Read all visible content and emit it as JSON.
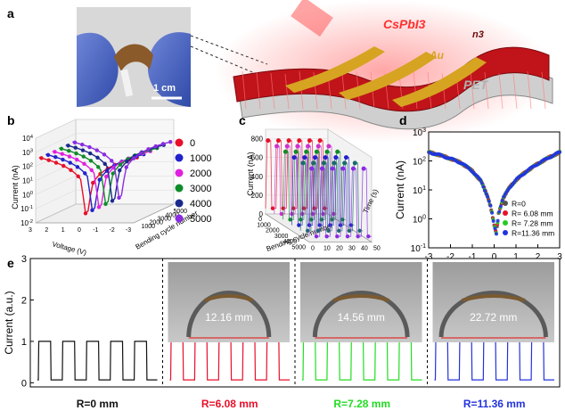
{
  "panels": {
    "a": {
      "label": "a",
      "scale_bar": "1 cm",
      "layers": {
        "top": "CsPbI3",
        "electrode": "Au",
        "substrate": "PET",
        "top_right": "n3"
      },
      "colors": {
        "perovskite": "#c0141a",
        "gold": "#d6a421",
        "substrate": "#c9c9c9",
        "glow": "#ff6b6b"
      }
    },
    "b": {
      "label": "b"
    },
    "c": {
      "label": "c"
    },
    "d": {
      "label": "d"
    },
    "e": {
      "label": "e"
    }
  },
  "chart_data": [
    {
      "panel": "b",
      "type": "scatter",
      "projection": "3d",
      "xlabel": "Voltage (V)",
      "ylabel": "Bending cycle number",
      "zlabel": "Current (nA)",
      "x_ticks": [
        "3",
        "2",
        "1",
        "0",
        "-1",
        "-2",
        "-3"
      ],
      "y_ticks": [
        "1000",
        "2000",
        "3000",
        "4000",
        "5000"
      ],
      "z_ticks": [
        "10^4",
        "10^3",
        "10^2",
        "10^1",
        "10^0",
        "10^-1",
        "10^-2"
      ],
      "zlim": [
        -2,
        4
      ],
      "zscale": "log",
      "legend_position": "right",
      "series": [
        {
          "name": "0",
          "color": "#e8102a"
        },
        {
          "name": "1000",
          "color": "#2222cc"
        },
        {
          "name": "2000",
          "color": "#e020e0"
        },
        {
          "name": "3000",
          "color": "#0f8c2a"
        },
        {
          "name": "4000",
          "color": "#1a2a8c"
        },
        {
          "name": "5000",
          "color": "#8a2be2"
        }
      ]
    },
    {
      "panel": "c",
      "type": "line",
      "projection": "3d",
      "xlabel": "Bending cycle number",
      "ylabel": "Time (s)",
      "zlabel": "Current (nA)",
      "x_ticks": [
        "0",
        "1000",
        "2000",
        "3000",
        "4000",
        "5000"
      ],
      "y_ticks": [
        "0",
        "10",
        "20",
        "30",
        "40",
        "50"
      ],
      "z_ticks": [
        "0",
        "200",
        "400",
        "600",
        "800"
      ],
      "zlim": [
        0,
        900
      ],
      "on_level": 780,
      "off_level": 60,
      "series": [
        {
          "cycles": 0,
          "color": "#e8102a"
        },
        {
          "cycles": 1000,
          "color": "#cc33cc"
        },
        {
          "cycles": 2000,
          "color": "#0f8c2a"
        },
        {
          "cycles": 3000,
          "color": "#2222cc"
        },
        {
          "cycles": 4000,
          "color": "#1a6b6b"
        },
        {
          "cycles": 5000,
          "color": "#8a2be2"
        }
      ]
    },
    {
      "panel": "d",
      "type": "scatter",
      "xlabel": "Voltage (V)",
      "ylabel": "Current (nA)",
      "xlim": [
        -3,
        3
      ],
      "ylim": [
        0.1,
        1000
      ],
      "yscale": "log",
      "x_ticks": [
        "-3",
        "-2",
        "-1",
        "0",
        "1",
        "2",
        "3"
      ],
      "y_ticks": [
        "10^3",
        "10^2",
        "10^1",
        "10^0",
        "10^-1"
      ],
      "legend_position": "lower-right",
      "series": [
        {
          "name": "R=0",
          "color": "#555555"
        },
        {
          "name": "R= 6.08  mm",
          "color": "#e8102a"
        },
        {
          "name": "R= 7.28  mm",
          "color": "#22cc22"
        },
        {
          "name": "R=11.36 mm",
          "color": "#2233dd"
        }
      ],
      "curve": {
        "x": [
          -3,
          -2.5,
          -2,
          -1.5,
          -1,
          -0.6,
          -0.3,
          -0.15,
          0,
          0.1,
          0.2,
          0.4,
          0.7,
          1,
          1.5,
          2,
          2.5,
          3
        ],
        "y": [
          200,
          160,
          120,
          85,
          45,
          20,
          6,
          2.5,
          0.6,
          0.3,
          1.5,
          5,
          12,
          22,
          45,
          80,
          130,
          200
        ]
      }
    },
    {
      "panel": "e",
      "type": "line",
      "ylabel": "Current (a.u.)",
      "y_ticks": [
        "0",
        "1",
        "2",
        "3"
      ],
      "ylim": [
        -0.1,
        3
      ],
      "on_level": 1.0,
      "off_level": 0.07,
      "cycles_per_segment": 5,
      "segments": [
        {
          "name": "R=0 mm",
          "color": "#111111"
        },
        {
          "name": "R=6.08 mm",
          "color": "#e8102a",
          "photo_label": "12.16 mm"
        },
        {
          "name": "R=7.28 mm",
          "color": "#22dd22",
          "photo_label": "14.56 mm"
        },
        {
          "name": "R=11.36 mm",
          "color": "#2233dd",
          "photo_label": "22.72 mm"
        }
      ]
    }
  ]
}
